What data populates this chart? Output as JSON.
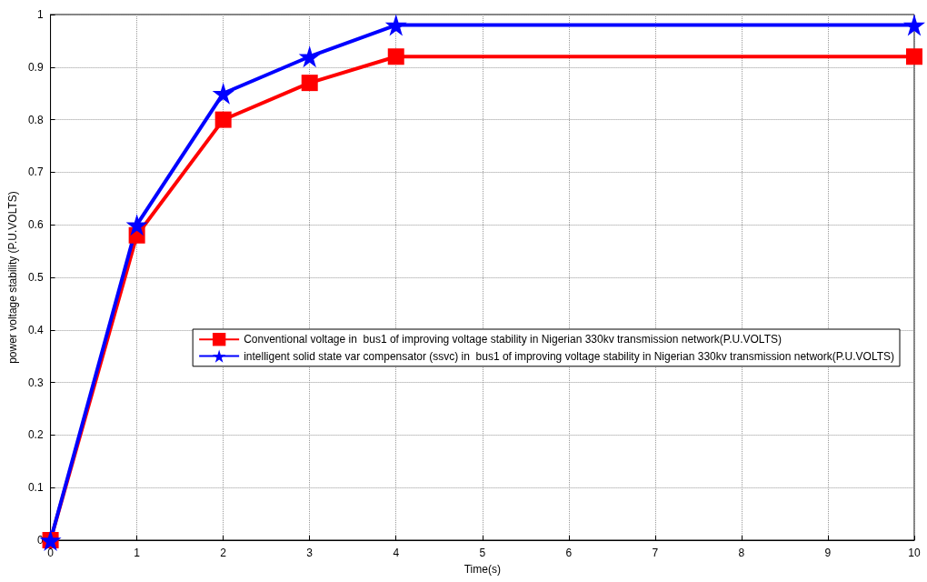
{
  "chart_data": {
    "type": "line",
    "xlabel": "Time(s)",
    "ylabel": "power voltage stability (P.U.VOLTS)",
    "x": [
      0,
      1,
      2,
      3,
      4,
      10
    ],
    "series": [
      {
        "name": "Conventional voltage in  bus1 of improving voltage stability in Nigerian 330kv transmission network(P.U.VOLTS)",
        "color": "#ff0000",
        "marker": "square",
        "values": [
          0,
          0.58,
          0.8,
          0.87,
          0.92,
          0.92
        ]
      },
      {
        "name": "intelligent solid state var compensator (ssvc) in  bus1 of improving voltage stability in Nigerian 330kv transmission network(P.U.VOLTS)",
        "color": "#0000ff",
        "marker": "star",
        "values": [
          0,
          0.6,
          0.85,
          0.92,
          0.98,
          0.98
        ]
      }
    ],
    "xlim": [
      0,
      10
    ],
    "xticks": [
      0,
      1,
      2,
      3,
      4,
      5,
      6,
      7,
      8,
      9,
      10
    ],
    "ylim": [
      0,
      1
    ],
    "yticks": [
      0,
      0.1,
      0.2,
      0.3,
      0.4,
      0.5,
      0.6,
      0.7,
      0.8,
      0.9,
      1
    ],
    "grid": true,
    "legend": "center right",
    "line_style": "solid"
  }
}
